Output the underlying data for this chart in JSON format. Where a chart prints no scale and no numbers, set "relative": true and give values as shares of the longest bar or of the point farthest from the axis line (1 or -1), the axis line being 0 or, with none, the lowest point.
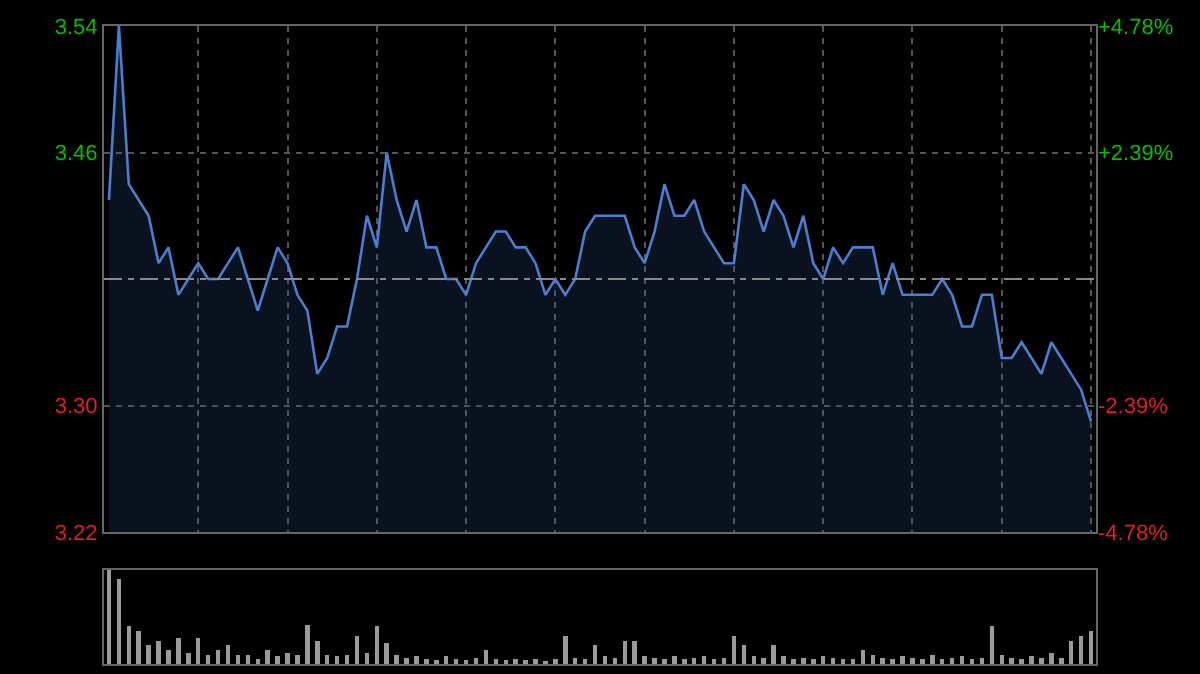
{
  "chart_data": [
    {
      "type": "area",
      "categories": [
        null,
        null,
        null,
        null,
        null,
        null,
        null,
        null,
        null,
        null,
        null,
        null,
        null,
        null,
        null,
        null,
        null,
        null,
        null,
        null,
        null,
        null,
        null,
        null,
        null,
        null,
        null,
        null,
        null,
        null,
        null,
        null,
        null,
        null,
        null,
        null,
        null,
        null,
        null,
        null,
        null,
        null,
        null,
        null,
        null,
        null,
        null,
        null,
        null,
        null,
        null,
        null,
        null,
        null,
        null,
        null,
        null,
        null,
        null,
        null,
        null,
        null,
        null,
        null,
        null,
        null,
        null,
        null,
        null,
        null,
        null,
        null,
        null,
        null,
        null,
        null,
        null,
        null,
        null,
        null,
        null,
        null,
        null,
        null,
        null,
        null,
        null,
        null,
        null,
        null,
        null,
        null,
        null,
        null,
        null,
        null,
        null,
        null,
        null,
        null
      ],
      "series": [
        {
          "color": "#4a7fd0",
          "values": [
            3.43,
            3.54,
            3.44,
            3.43,
            3.42,
            3.39,
            3.4,
            3.37,
            3.38,
            3.39,
            3.38,
            3.38,
            3.39,
            3.4,
            3.38,
            3.36,
            3.38,
            3.4,
            3.39,
            3.37,
            3.36,
            3.32,
            3.33,
            3.35,
            3.35,
            3.38,
            3.42,
            3.4,
            3.46,
            3.43,
            3.41,
            3.43,
            3.4,
            3.4,
            3.38,
            3.38,
            3.37,
            3.39,
            3.4,
            3.41,
            3.41,
            3.4,
            3.4,
            3.39,
            3.37,
            3.38,
            3.37,
            3.38,
            3.41,
            3.42,
            3.42,
            3.42,
            3.42,
            3.4,
            3.39,
            3.41,
            3.44,
            3.42,
            3.42,
            3.43,
            3.41,
            3.4,
            3.39,
            3.39,
            3.44,
            3.43,
            3.41,
            3.43,
            3.42,
            3.4,
            3.42,
            3.39,
            3.38,
            3.4,
            3.39,
            3.4,
            3.4,
            3.4,
            3.37,
            3.39,
            3.37,
            3.37,
            3.37,
            3.37,
            3.38,
            3.37,
            3.35,
            3.35,
            3.37,
            3.37,
            3.33,
            3.33,
            3.34,
            3.33,
            3.32,
            3.34,
            3.33,
            3.32,
            3.31,
            3.29
          ]
        }
      ],
      "ylim": [
        3.22,
        3.54
      ],
      "yticks": [
        3.54,
        3.46,
        {
          "value": 3.38,
          "label": null
        },
        {
          "value": 3.3,
          "label": "3.30"
        },
        3.22
      ],
      "y2lim": [
        -4.78,
        4.78
      ],
      "y2ticks": [
        {
          "value": 4.78,
          "label": "+4.78%"
        },
        {
          "value": 2.39,
          "label": "+2.39%"
        },
        {
          "value": 0,
          "label": null
        },
        {
          "value": -2.39,
          "label": "-2.39%"
        },
        {
          "value": -4.78,
          "label": "-4.78%"
        }
      ],
      "ref_lines": [
        {
          "axis": "y",
          "value": 3.38,
          "line_style": "dashed",
          "color": "#888888"
        }
      ],
      "grid": true,
      "marker": "none",
      "line_style": "solid"
    },
    {
      "type": "bar",
      "relative": true,
      "categories": [
        null,
        null,
        null,
        null,
        null,
        null,
        null,
        null,
        null,
        null,
        null,
        null,
        null,
        null,
        null,
        null,
        null,
        null,
        null,
        null,
        null,
        null,
        null,
        null,
        null,
        null,
        null,
        null,
        null,
        null,
        null,
        null,
        null,
        null,
        null,
        null,
        null,
        null,
        null,
        null,
        null,
        null,
        null,
        null,
        null,
        null,
        null,
        null,
        null,
        null,
        null,
        null,
        null,
        null,
        null,
        null,
        null,
        null,
        null,
        null,
        null,
        null,
        null,
        null,
        null,
        null,
        null,
        null,
        null,
        null,
        null,
        null,
        null,
        null,
        null,
        null,
        null,
        null,
        null,
        null,
        null,
        null,
        null,
        null,
        null,
        null,
        null,
        null,
        null,
        null,
        null,
        null,
        null,
        null,
        null,
        null,
        null,
        null,
        null,
        null
      ],
      "series": [
        {
          "color": "#9a9a9a",
          "values": [
            1,
            0.9,
            0.4,
            0.35,
            0.2,
            0.25,
            0.15,
            0.28,
            0.12,
            0.28,
            0.1,
            0.15,
            0.2,
            0.1,
            0.1,
            0.05,
            0.15,
            0.08,
            0.12,
            0.1,
            0.42,
            0.25,
            0.1,
            0.08,
            0.1,
            0.3,
            0.12,
            0.4,
            0.22,
            0.1,
            0.06,
            0.08,
            0.05,
            0.04,
            0.08,
            0.05,
            0.04,
            0.06,
            0.15,
            0.05,
            0.04,
            0.05,
            0.04,
            0.05,
            0.03,
            0.05,
            0.3,
            0.06,
            0.05,
            0.2,
            0.08,
            0.06,
            0.25,
            0.25,
            0.08,
            0.06,
            0.05,
            0.08,
            0.05,
            0.06,
            0.08,
            0.05,
            0.06,
            0.3,
            0.2,
            0.08,
            0.06,
            0.2,
            0.08,
            0.05,
            0.06,
            0.05,
            0.08,
            0.06,
            0.05,
            0.05,
            0.15,
            0.1,
            0.06,
            0.05,
            0.08,
            0.06,
            0.05,
            0.1,
            0.05,
            0.06,
            0.08,
            0.05,
            0.06,
            0.4,
            0.1,
            0.06,
            0.05,
            0.08,
            0.06,
            0.12,
            0.06,
            0.25,
            0.3,
            0.35
          ]
        }
      ],
      "grid": false
    }
  ]
}
